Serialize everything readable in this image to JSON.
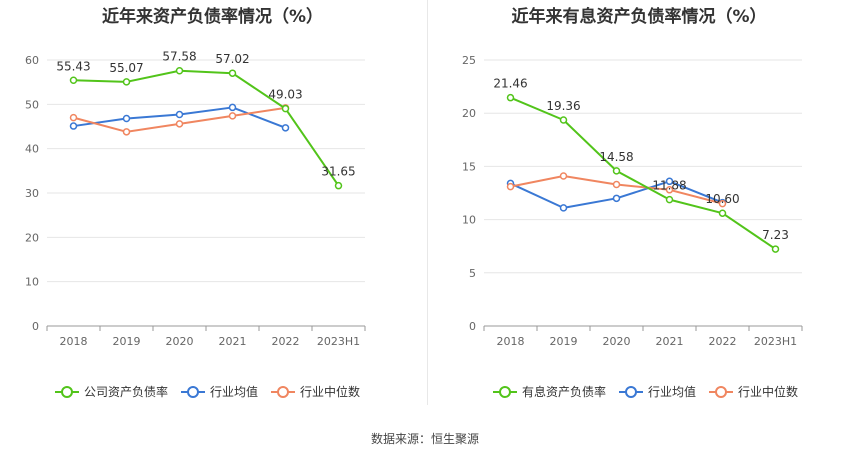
{
  "source_label": "数据来源：恒生聚源",
  "chart_data": [
    {
      "type": "line",
      "title": "近年来资产负债率情况（%）",
      "categories": [
        "2018",
        "2019",
        "2020",
        "2021",
        "2022",
        "2023H1"
      ],
      "ylim": [
        0,
        60
      ],
      "yticks": [
        0,
        10,
        20,
        30,
        40,
        50,
        60
      ],
      "series": [
        {
          "name": "公司资产负债率",
          "color": "#52c41a",
          "values": [
            55.43,
            55.07,
            57.58,
            57.02,
            49.03,
            31.65
          ],
          "labels": [
            "55.43",
            "55.07",
            "57.58",
            "57.02",
            "49.03",
            "31.65"
          ]
        },
        {
          "name": "行业均值",
          "color": "#3a78d4",
          "values": [
            45.1,
            46.8,
            47.7,
            49.3,
            44.7,
            null
          ]
        },
        {
          "name": "行业中位数",
          "color": "#f08660",
          "values": [
            47.0,
            43.8,
            45.6,
            47.4,
            49.2,
            null
          ]
        }
      ]
    },
    {
      "type": "line",
      "title": "近年来有息资产负债率情况（%）",
      "categories": [
        "2018",
        "2019",
        "2020",
        "2021",
        "2022",
        "2023H1"
      ],
      "ylim": [
        0,
        25
      ],
      "yticks": [
        0,
        5,
        10,
        15,
        20,
        25
      ],
      "series": [
        {
          "name": "有息资产负债率",
          "color": "#52c41a",
          "values": [
            21.46,
            19.36,
            14.58,
            11.88,
            10.6,
            7.23
          ],
          "labels": [
            "21.46",
            "19.36",
            "14.58",
            "11.88",
            "10.60",
            "7.23"
          ]
        },
        {
          "name": "行业均值",
          "color": "#3a78d4",
          "values": [
            13.4,
            11.1,
            12.0,
            13.6,
            11.6,
            null
          ]
        },
        {
          "name": "行业中位数",
          "color": "#f08660",
          "values": [
            13.1,
            14.1,
            13.3,
            12.8,
            11.5,
            null
          ]
        }
      ]
    }
  ]
}
